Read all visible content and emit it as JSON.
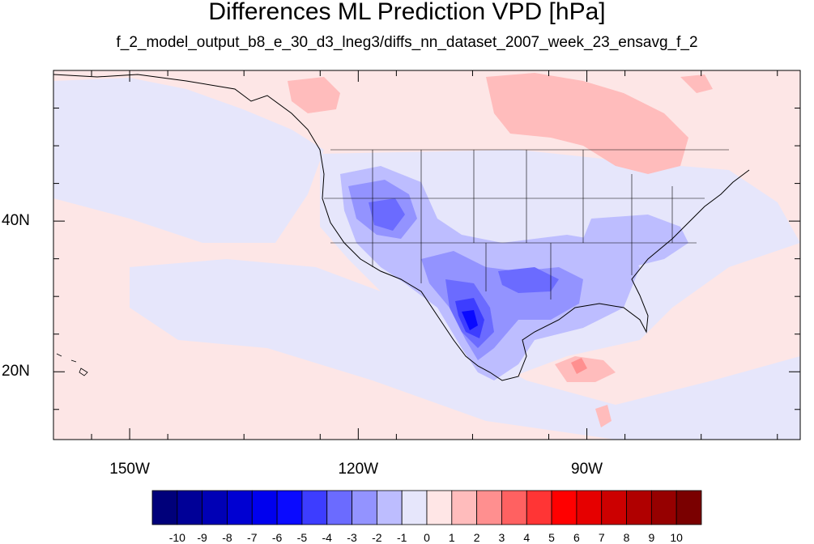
{
  "title": "Differences ML Prediction VPD [hPa]",
  "subtitle": "f_2_model_output_b8_e_30_d3_lneg3/diffs_nn_dataset_2007_week_23_ensavg_f_2",
  "map": {
    "projection": "cylindrical-equidistant",
    "lon_range": [
      -160,
      -62
    ],
    "lat_range": [
      11,
      60
    ],
    "background_color": "#fde6e6",
    "land_outline_color": "#000000"
  },
  "lat_ticks": [
    {
      "value": 20,
      "label": "20N"
    },
    {
      "value": 40,
      "label": "40N"
    }
  ],
  "lon_ticks": [
    {
      "value": -150,
      "label": "150W"
    },
    {
      "value": -120,
      "label": "120W"
    },
    {
      "value": -90,
      "label": "90W"
    }
  ],
  "colorbar": {
    "labels": [
      "-10",
      "-9",
      "-8",
      "-7",
      "-6",
      "-5",
      "-4",
      "-3",
      "-2",
      "-1",
      "0",
      "1",
      "2",
      "3",
      "4",
      "5",
      "6",
      "7",
      "8",
      "9",
      "10"
    ],
    "colors": [
      "#00007a",
      "#000097",
      "#0000b5",
      "#0000d2",
      "#0000ee",
      "#0a0aff",
      "#3d3dff",
      "#6b6bff",
      "#9393ff",
      "#bdbdff",
      "#e6e6fb",
      "#ffe6e6",
      "#ffbcbc",
      "#ff8f8f",
      "#ff6161",
      "#ff3535",
      "#ff0000",
      "#e60000",
      "#cc0000",
      "#b00000",
      "#960000",
      "#7a0000"
    ]
  }
}
